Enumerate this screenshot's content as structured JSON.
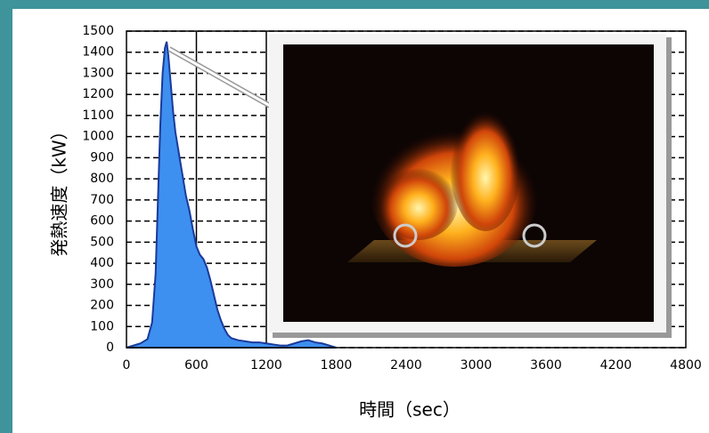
{
  "chart_data": {
    "type": "area",
    "xlabel": "時間（sec）",
    "ylabel": "発熱速度（kW）",
    "x": [
      0,
      60,
      120,
      180,
      220,
      250,
      270,
      290,
      310,
      330,
      345,
      360,
      380,
      400,
      420,
      450,
      480,
      510,
      540,
      570,
      600,
      630,
      660,
      690,
      720,
      750,
      780,
      810,
      840,
      870,
      900,
      960,
      1020,
      1080,
      1140,
      1200,
      1260,
      1320,
      1380,
      1440,
      1500,
      1560,
      1620,
      1680,
      1740,
      1800
    ],
    "series": [
      {
        "name": "発熱速度",
        "color": "#3d8ff0",
        "values": [
          0,
          10,
          20,
          40,
          120,
          350,
          700,
          1050,
          1300,
          1420,
          1450,
          1380,
          1250,
          1120,
          1020,
          920,
          820,
          720,
          650,
          560,
          480,
          440,
          420,
          380,
          320,
          250,
          180,
          130,
          90,
          60,
          45,
          35,
          30,
          25,
          25,
          20,
          15,
          10,
          10,
          20,
          30,
          35,
          25,
          20,
          10,
          0
        ]
      }
    ],
    "xlim": [
      0,
      4800
    ],
    "ylim": [
      0,
      1500
    ],
    "xticks": [
      0,
      600,
      1200,
      1800,
      2400,
      3000,
      3600,
      4200,
      4800
    ],
    "yticks": [
      0,
      100,
      200,
      300,
      400,
      500,
      600,
      700,
      800,
      900,
      1000,
      1100,
      1200,
      1300,
      1400,
      1500
    ],
    "grid": true
  }
}
